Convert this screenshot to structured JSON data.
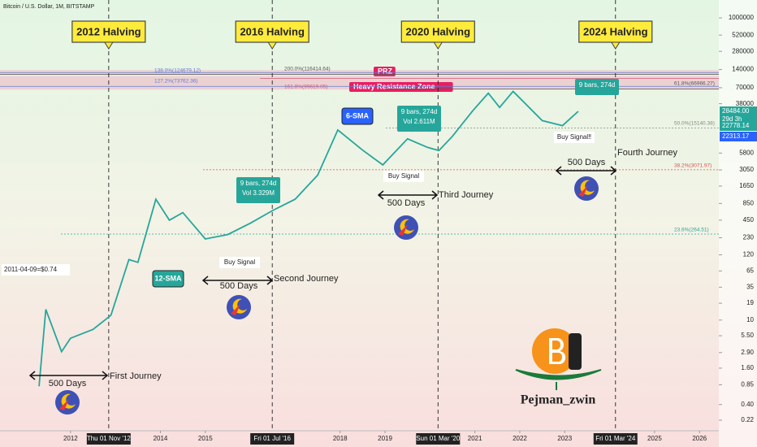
{
  "chart_data": {
    "type": "line",
    "title": "Bitcoin / U.S. Dollar, 1M, BITSTAMP",
    "log_scale": true,
    "xlim": [
      2010.43,
      2026.43
    ],
    "xticks": [
      2012,
      2014,
      2015,
      2018,
      2019,
      2021,
      2022,
      2023,
      2025,
      2026
    ],
    "ylim": [
      0.108,
      1980000
    ],
    "yticks": [
      1000000,
      520000,
      280000,
      140000,
      70000,
      38000,
      5800,
      3050,
      1650,
      850,
      450,
      230,
      120,
      65,
      35,
      19,
      10,
      {
        "value": 5.5,
        "label": "5.50"
      },
      {
        "value": 2.9,
        "label": "2.90"
      },
      {
        "value": 1.6,
        "label": "1.60"
      },
      0.85,
      {
        "value": 0.4,
        "label": "0.40"
      },
      0.22
    ],
    "series": [
      {
        "color": "#26a69a",
        "x": [
          2011.3,
          2011.45,
          2011.8,
          2012.0,
          2012.5,
          2012.9,
          2013.3,
          2013.5,
          2013.9,
          2014.2,
          2014.5,
          2015.0,
          2015.5,
          2016.0,
          2016.5,
          2017.0,
          2017.5,
          2017.95,
          2018.5,
          2018.95,
          2019.5,
          2019.95,
          2020.2,
          2020.5,
          2020.95,
          2021.3,
          2021.55,
          2021.85,
          2022.5,
          2022.95,
          2023.3
        ],
        "values": [
          0.8,
          15,
          3,
          5,
          7,
          12,
          100,
          90,
          1000,
          450,
          600,
          220,
          260,
          400,
          650,
          1000,
          2500,
          14000,
          6500,
          3700,
          10000,
          7200,
          6400,
          11000,
          29000,
          57000,
          33000,
          61000,
          20000,
          16500,
          28484
        ]
      }
    ],
    "halvings": [
      {
        "label": "2012 Halving",
        "date_label": "Thu 01 Nov '12",
        "x": 2012.85
      },
      {
        "label": "2016 Halving",
        "date_label": "Fri 01 Jul '16",
        "x": 2016.49
      },
      {
        "label": "2020 Halving",
        "date_label": "Sun 01 Mar '20",
        "x": 2020.18
      },
      {
        "label": "2024 Halving",
        "date_label": "Fri 01 Mar '24",
        "x": 2024.13
      }
    ],
    "levels": [
      {
        "label": "138.0%(124679.12)",
        "value": 124679.12,
        "color": "#5b7bd5"
      },
      {
        "label": "200.0%(116414.64)",
        "value": 116414.64,
        "color": "#555555"
      },
      {
        "label": "127.2%(73762.36)",
        "value": 73762.36,
        "color": "#5b7bd5"
      },
      {
        "label": "161.8%(99619.05)",
        "value": 99619.05,
        "color": "#d05a7a"
      },
      {
        "label": "61.8%(66966.27)",
        "value": 66966.27,
        "color": "#555555"
      },
      {
        "label": "50.0%(15140.38)",
        "value": 15140.38,
        "color": "#888888"
      },
      {
        "label": "38.2%(3071.97)",
        "value": 3071.97,
        "color": "#e05050"
      },
      {
        "label": "23.6%(264.51)",
        "value": 264.51,
        "color": "#26a69a"
      }
    ],
    "zones": [
      "PRZ",
      "Heavy Resistance Zone"
    ],
    "journeys": [
      {
        "label": "First Journey",
        "days": "500 Days"
      },
      {
        "label": "Second Journey",
        "days": "500 Days"
      },
      {
        "label": "Third Journey",
        "days": "500 Days"
      },
      {
        "label": "Fourth Journey",
        "days": "500 Days"
      }
    ],
    "buy_signals": [
      "Buy Signal",
      "Buy Signal",
      "Buy Signal‼"
    ],
    "stat_boxes": [
      {
        "lines": [
          "9 bars, 274d",
          "Vol 3.329M"
        ]
      },
      {
        "lines": [
          "9 bars, 274d",
          "Vol 2.611M"
        ]
      },
      {
        "lines": [
          "9 bars, 274d"
        ]
      }
    ],
    "sma_labels": [
      "6-SMA",
      "12-SMA"
    ],
    "start_note": "2011-04-09=$0.74",
    "price_labels": [
      {
        "lines": [
          "28484.00",
          "29d 3h"
        ],
        "color": "#26a69a"
      },
      {
        "lines": [
          "22778.14"
        ],
        "color": "#26a69a"
      },
      {
        "lines": [
          "22313.17"
        ],
        "color": "#2962ff"
      }
    ],
    "author": "Pejman_zwin"
  }
}
